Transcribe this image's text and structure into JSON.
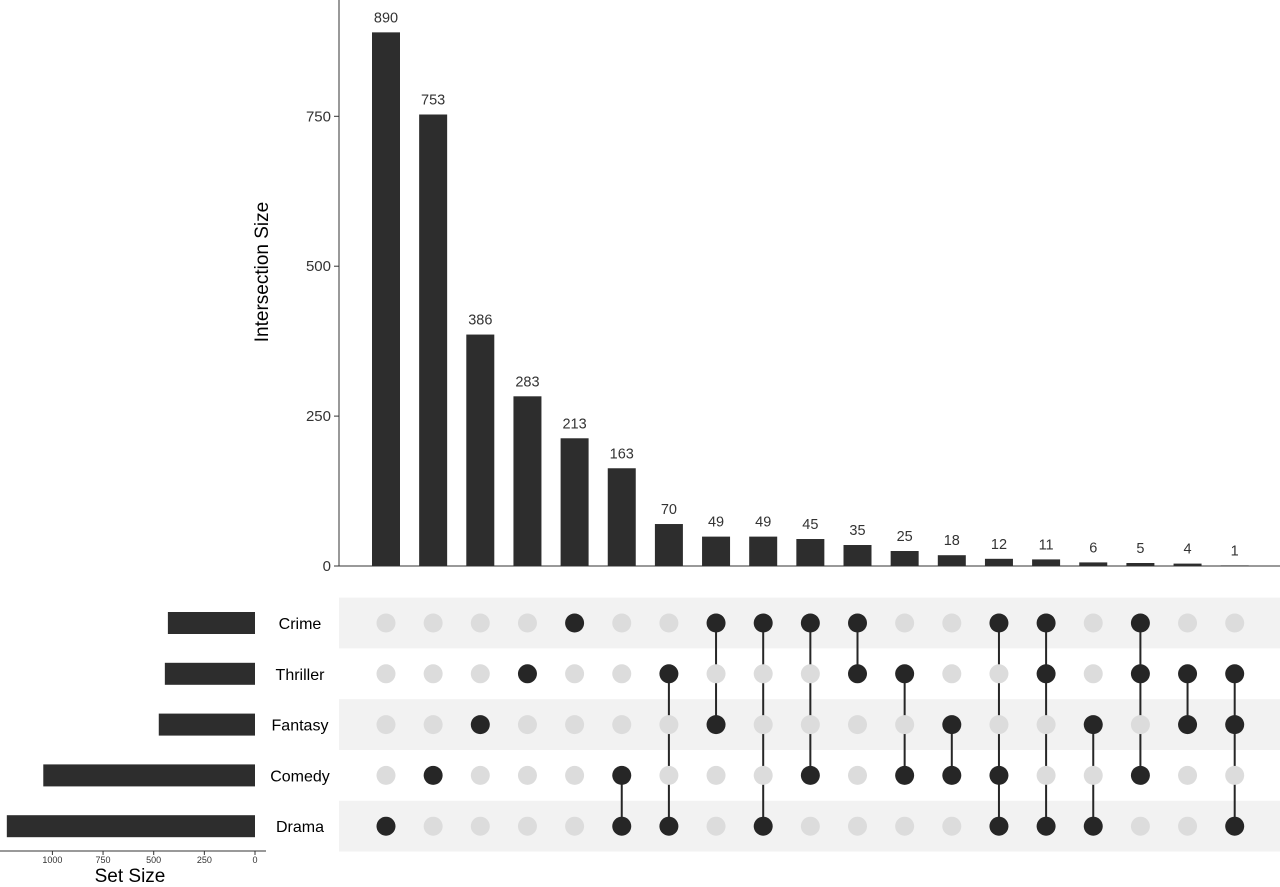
{
  "chart_data": {
    "type": "bar",
    "ylabel": "Intersection Size",
    "xlabel_sets": "Set Size",
    "ylim": [
      0,
      900
    ],
    "y_ticks": [
      0,
      250,
      500,
      750
    ],
    "set_size_ticks": [
      1000,
      750,
      500,
      250,
      0
    ],
    "sets": [
      {
        "name": "Crime",
        "size": 430
      },
      {
        "name": "Thriller",
        "size": 445
      },
      {
        "name": "Fantasy",
        "size": 475
      },
      {
        "name": "Comedy",
        "size": 1045
      },
      {
        "name": "Drama",
        "size": 1225
      }
    ],
    "intersections": [
      {
        "value": 890,
        "label": "890",
        "members": [
          "Drama"
        ]
      },
      {
        "value": 753,
        "label": "753",
        "members": [
          "Comedy"
        ]
      },
      {
        "value": 386,
        "label": "386",
        "members": [
          "Fantasy"
        ]
      },
      {
        "value": 283,
        "label": "283",
        "members": [
          "Thriller"
        ]
      },
      {
        "value": 213,
        "label": "213",
        "members": [
          "Crime"
        ]
      },
      {
        "value": 163,
        "label": "163",
        "members": [
          "Comedy",
          "Drama"
        ]
      },
      {
        "value": 70,
        "label": "70",
        "members": [
          "Thriller",
          "Drama"
        ]
      },
      {
        "value": 49,
        "label": "49",
        "members": [
          "Crime",
          "Fantasy"
        ]
      },
      {
        "value": 49,
        "label": "49",
        "members": [
          "Crime",
          "Drama"
        ]
      },
      {
        "value": 45,
        "label": "45",
        "members": [
          "Crime",
          "Comedy"
        ]
      },
      {
        "value": 35,
        "label": "35",
        "members": [
          "Crime",
          "Thriller"
        ]
      },
      {
        "value": 25,
        "label": "25",
        "members": [
          "Thriller",
          "Comedy"
        ]
      },
      {
        "value": 18,
        "label": "18",
        "members": [
          "Fantasy",
          "Comedy"
        ]
      },
      {
        "value": 12,
        "label": "12",
        "members": [
          "Crime",
          "Comedy",
          "Drama"
        ]
      },
      {
        "value": 11,
        "label": "11",
        "members": [
          "Crime",
          "Thriller",
          "Drama"
        ]
      },
      {
        "value": 6,
        "label": "6",
        "members": [
          "Fantasy",
          "Drama"
        ]
      },
      {
        "value": 5,
        "label": "5",
        "members": [
          "Crime",
          "Thriller",
          "Comedy"
        ]
      },
      {
        "value": 4,
        "label": "4",
        "members": [
          "Thriller",
          "Fantasy"
        ]
      },
      {
        "value": 1,
        "label": "1",
        "members": [
          "Thriller",
          "Fantasy",
          "Drama"
        ]
      }
    ],
    "colors": {
      "bar": "#2d2d2d",
      "dot_active": "#262626",
      "dot_inactive": "#dcdcdc",
      "stripe": "#f2f2f2",
      "axis": "#333333"
    }
  }
}
